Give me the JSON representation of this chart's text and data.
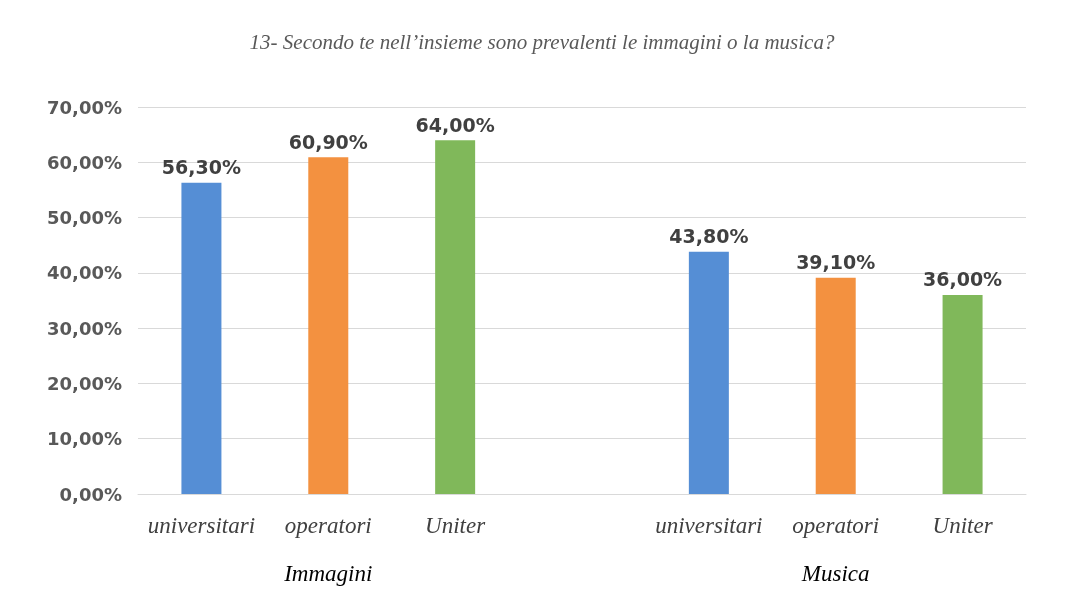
{
  "chart_data": {
    "type": "bar",
    "title": "13- Secondo te nell’insieme sono prevalenti le immagini o la musica?",
    "categories": [
      "universitari",
      "operatori",
      "Uniter",
      null,
      "universitari",
      "operatori",
      "Uniter"
    ],
    "values": [
      56.3,
      60.9,
      64.0,
      null,
      43.8,
      39.1,
      36.0
    ],
    "colors": [
      "#558ed5",
      "#f39140",
      "#80b85a",
      null,
      "#558ed5",
      "#f39140",
      "#80b85a"
    ],
    "value_labels": [
      "56,30%",
      "60,90%",
      "64,00%",
      null,
      "43,80%",
      "39,10%",
      "36,00%"
    ],
    "annotations": [
      "Immagini",
      "Musica"
    ],
    "ylim": [
      0,
      70
    ],
    "yticks": [
      {
        "value": 0,
        "label": "0,00%"
      },
      {
        "value": 10,
        "label": "10,00%"
      },
      {
        "value": 20,
        "label": "20,00%"
      },
      {
        "value": 30,
        "label": "30,00%"
      },
      {
        "value": 40,
        "label": "40,00%"
      },
      {
        "value": 50,
        "label": "50,00%"
      },
      {
        "value": 60,
        "label": "60,00%"
      },
      {
        "value": 70,
        "label": "70,00%"
      }
    ],
    "grid": "y"
  }
}
